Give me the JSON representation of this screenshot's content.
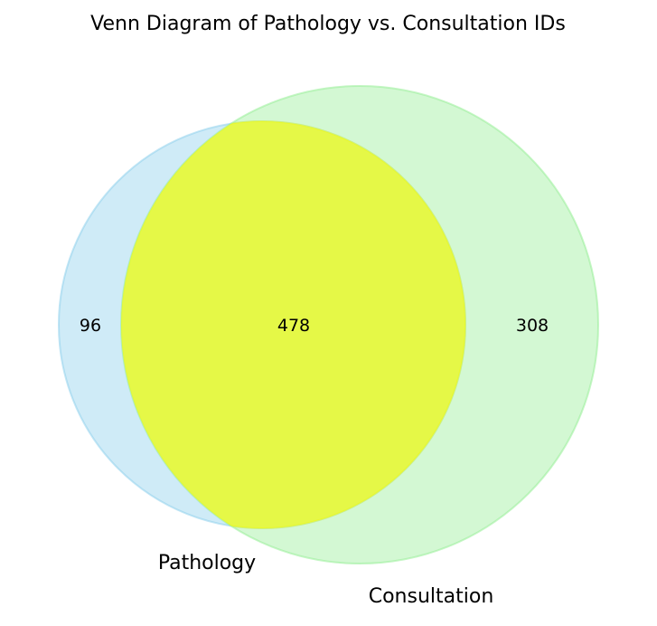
{
  "title": "Venn Diagram of Pathology vs. Consultation IDs",
  "sets": [
    {
      "name": "Pathology",
      "color": "#87ceeb"
    },
    {
      "name": "Consultation",
      "color": "#90ee90"
    }
  ],
  "overlap_color": "#ffff00",
  "counts": {
    "only_pathology": "96",
    "both": "478",
    "only_consultation": "308"
  }
}
